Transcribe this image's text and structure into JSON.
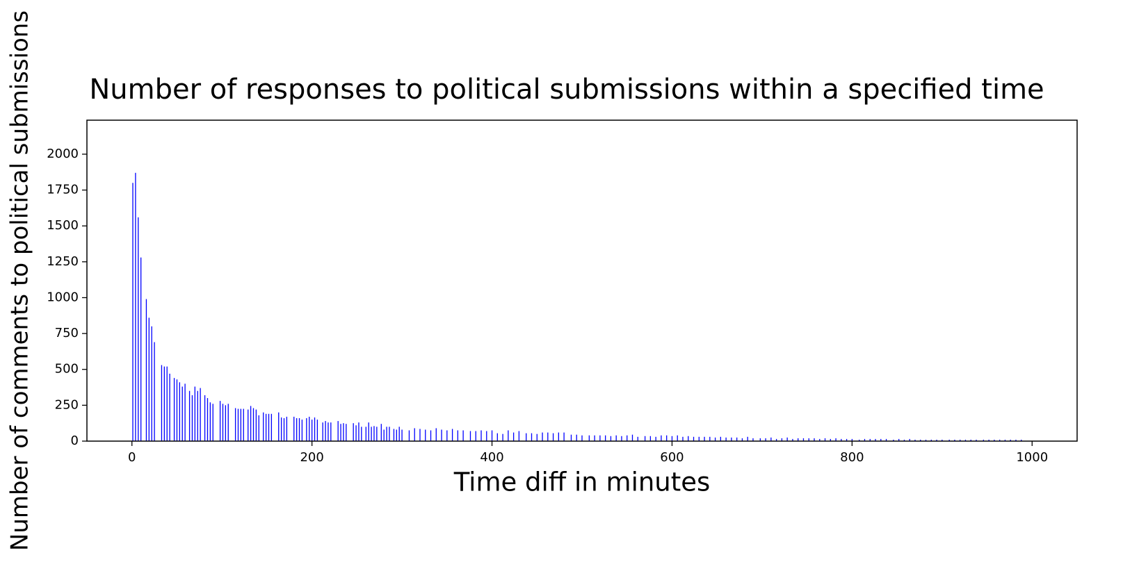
{
  "chart_data": {
    "type": "bar",
    "title": "Number of responses to political submissions within a specified time",
    "xlabel": "Time diff in minutes",
    "ylabel": "Number of comments to political submissions",
    "color": "#0000ff",
    "xlim": [
      -50,
      1050
    ],
    "ylim": [
      0,
      2237
    ],
    "xticks": [
      0,
      200,
      400,
      600,
      800,
      1000
    ],
    "yticks": [
      0,
      250,
      500,
      750,
      1000,
      1250,
      1500,
      1750,
      2000
    ],
    "x": [
      1,
      4,
      7,
      10,
      16,
      19,
      22,
      25,
      33,
      36,
      39,
      42,
      47,
      50,
      53,
      56,
      59,
      64,
      67,
      70,
      73,
      76,
      81,
      84,
      87,
      90,
      98,
      101,
      104,
      107,
      115,
      118,
      121,
      124,
      129,
      132,
      135,
      138,
      141,
      146,
      149,
      152,
      155,
      163,
      166,
      169,
      172,
      180,
      183,
      186,
      189,
      194,
      197,
      200,
      203,
      206,
      212,
      215,
      218,
      221,
      229,
      232,
      235,
      238,
      246,
      249,
      252,
      255,
      260,
      263,
      266,
      269,
      272,
      277,
      280,
      283,
      286,
      291,
      294,
      297,
      300,
      308,
      314,
      320,
      326,
      332,
      338,
      344,
      350,
      356,
      362,
      368,
      376,
      382,
      388,
      394,
      400,
      406,
      412,
      418,
      424,
      430,
      438,
      444,
      450,
      456,
      462,
      468,
      474,
      480,
      488,
      494,
      500,
      508,
      514,
      520,
      526,
      532,
      538,
      544,
      550,
      556,
      562,
      570,
      576,
      582,
      588,
      594,
      600,
      606,
      612,
      618,
      624,
      630,
      636,
      642,
      648,
      654,
      660,
      666,
      672,
      678,
      684,
      690,
      698,
      704,
      710,
      716,
      722,
      728,
      734,
      740,
      746,
      752,
      758,
      764,
      770,
      776,
      782,
      788,
      794,
      800,
      808,
      814,
      820,
      826,
      832,
      838,
      846,
      852,
      858,
      864,
      870,
      876,
      882,
      888,
      894,
      900,
      908,
      914,
      920,
      926,
      932,
      938,
      946,
      952,
      958,
      964,
      970,
      976,
      982,
      988
    ],
    "values": [
      1800,
      1870,
      1560,
      1280,
      990,
      860,
      800,
      690,
      530,
      520,
      520,
      470,
      440,
      430,
      410,
      380,
      400,
      350,
      320,
      380,
      350,
      370,
      320,
      300,
      270,
      260,
      280,
      260,
      250,
      260,
      230,
      225,
      225,
      225,
      220,
      245,
      230,
      220,
      180,
      200,
      190,
      190,
      190,
      200,
      165,
      160,
      170,
      170,
      160,
      160,
      150,
      160,
      170,
      150,
      165,
      150,
      130,
      140,
      130,
      130,
      140,
      120,
      125,
      120,
      125,
      110,
      130,
      100,
      100,
      130,
      100,
      105,
      100,
      120,
      80,
      100,
      100,
      85,
      80,
      100,
      80,
      75,
      90,
      85,
      80,
      75,
      90,
      80,
      75,
      85,
      75,
      75,
      70,
      70,
      75,
      70,
      75,
      55,
      50,
      75,
      60,
      70,
      55,
      55,
      50,
      60,
      60,
      55,
      60,
      60,
      45,
      45,
      40,
      40,
      40,
      40,
      40,
      35,
      40,
      35,
      40,
      45,
      30,
      35,
      35,
      30,
      40,
      40,
      35,
      40,
      30,
      35,
      30,
      30,
      30,
      30,
      25,
      30,
      25,
      25,
      25,
      20,
      30,
      20,
      20,
      20,
      25,
      15,
      20,
      25,
      15,
      20,
      20,
      20,
      20,
      15,
      20,
      15,
      20,
      15,
      15,
      15,
      10,
      15,
      15,
      15,
      15,
      15,
      10,
      15,
      10,
      15,
      10,
      10,
      10,
      10,
      10,
      10,
      10,
      10,
      10,
      10,
      10,
      10,
      10,
      10,
      10,
      10,
      10,
      10,
      10,
      10
    ]
  }
}
